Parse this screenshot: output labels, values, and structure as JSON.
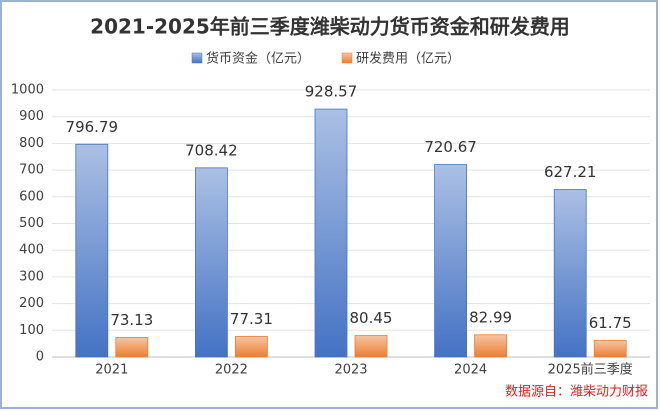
{
  "chart_data": {
    "type": "bar",
    "title": "2021-2025年前三季度潍柴动力货币资金和研发费用",
    "categories": [
      "2021",
      "2022",
      "2023",
      "2024",
      "2025前三季度"
    ],
    "series": [
      {
        "name": "货币资金（亿元）",
        "color": "#4472c4",
        "values": [
          796.79,
          708.42,
          928.57,
          720.67,
          627.21
        ]
      },
      {
        "name": "研发费用（亿元）",
        "color": "#ed7d31",
        "values": [
          73.13,
          77.31,
          80.45,
          82.99,
          61.75
        ]
      }
    ],
    "ylim": [
      0,
      1000
    ],
    "yticks": [
      0,
      100,
      200,
      300,
      400,
      500,
      600,
      700,
      800,
      900,
      1000
    ],
    "grid": true,
    "legend": "top",
    "source": "数据源自：潍柴动力财报"
  }
}
